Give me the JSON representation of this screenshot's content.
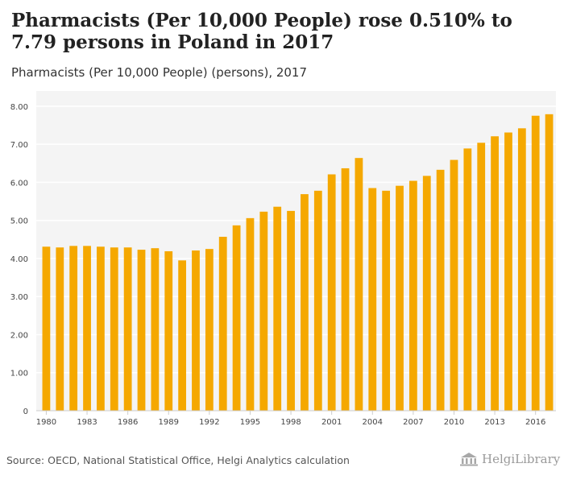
{
  "header": {
    "title": "Pharmacists (Per 10,000 People) rose 0.510% to 7.79 persons in Poland in 2017",
    "subtitle": "Pharmacists (Per 10,000 People) (persons), 2017"
  },
  "footer": {
    "source": "Source: OECD, National Statistical Office, Helgi Analytics calculation",
    "logo_text": "HelgiLibrary"
  },
  "colors": {
    "bar": "#f5a800",
    "plot_bg": "#f4f4f4",
    "grid": "#ffffff"
  },
  "chart_data": {
    "type": "bar",
    "title": "Pharmacists (Per 10,000 People) (persons), 2017",
    "x": [
      1980,
      1981,
      1982,
      1983,
      1984,
      1985,
      1986,
      1987,
      1988,
      1989,
      1990,
      1991,
      1992,
      1993,
      1994,
      1995,
      1996,
      1997,
      1998,
      1999,
      2000,
      2001,
      2002,
      2003,
      2004,
      2005,
      2006,
      2007,
      2008,
      2009,
      2010,
      2011,
      2012,
      2013,
      2014,
      2015,
      2016,
      2017
    ],
    "values": [
      4.31,
      4.29,
      4.33,
      4.33,
      4.31,
      4.29,
      4.29,
      4.23,
      4.27,
      4.19,
      3.95,
      4.21,
      4.25,
      4.57,
      4.87,
      5.06,
      5.23,
      5.36,
      5.25,
      5.69,
      5.78,
      6.21,
      6.37,
      6.64,
      5.85,
      5.78,
      5.91,
      6.04,
      6.17,
      6.33,
      6.59,
      6.89,
      7.04,
      7.21,
      7.31,
      7.42,
      7.75,
      7.79
    ],
    "x_tick_labels": [
      "1980",
      "1983",
      "1986",
      "1989",
      "1992",
      "1995",
      "1998",
      "2001",
      "2004",
      "2007",
      "2010",
      "2013",
      "2016"
    ],
    "y_tick_labels": [
      "0",
      "1.00",
      "2.00",
      "3.00",
      "4.00",
      "5.00",
      "6.00",
      "7.00",
      "8.00"
    ],
    "ylim": [
      0,
      8.4
    ],
    "grid": true,
    "xlabel": "",
    "ylabel": ""
  }
}
